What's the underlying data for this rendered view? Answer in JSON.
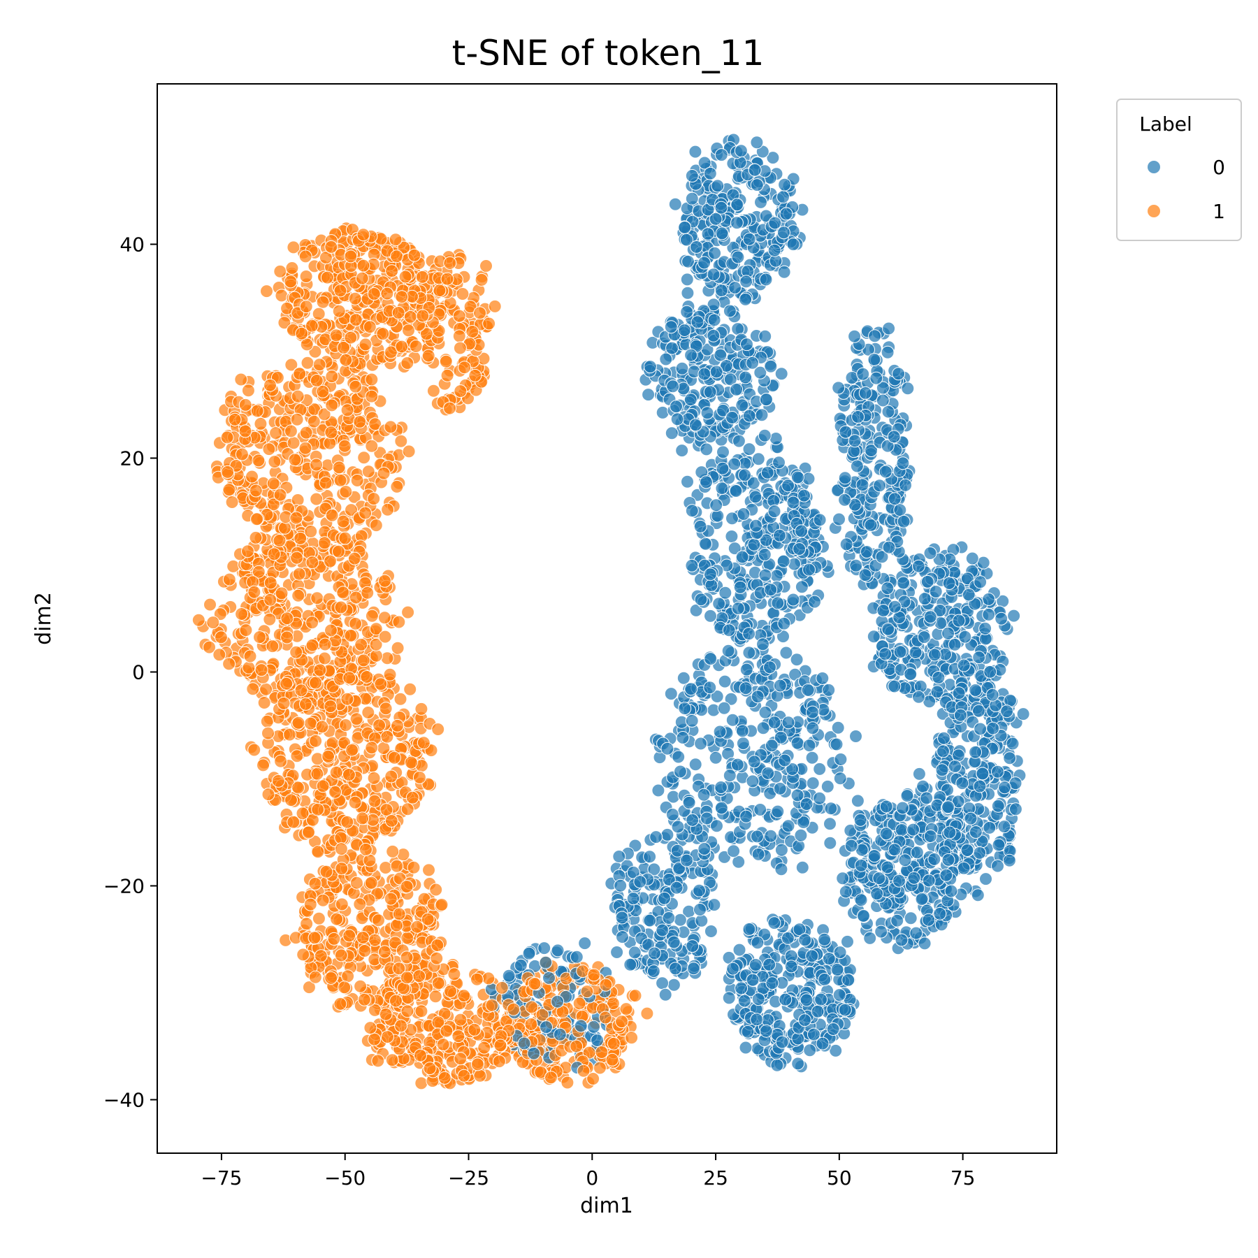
{
  "chart_data": {
    "type": "scatter",
    "title": "t-SNE of token_11",
    "xlabel": "dim1",
    "ylabel": "dim2",
    "xlim": [
      -88,
      94
    ],
    "ylim": [
      -45,
      55
    ],
    "xticks": [
      -75,
      -50,
      -25,
      0,
      25,
      50,
      75
    ],
    "yticks": [
      -40,
      -20,
      0,
      20,
      40
    ],
    "xtick_labels": [
      "−75",
      "−50",
      "−25",
      "0",
      "25",
      "50",
      "75"
    ],
    "ytick_labels": [
      "−40",
      "−20",
      "0",
      "20",
      "40"
    ],
    "grid": false,
    "legend": {
      "title": "Label",
      "placement": "outside-upper-right",
      "entries": [
        {
          "label": "0",
          "color": "#1f77b4"
        },
        {
          "label": "1",
          "color": "#ff7f0e"
        }
      ]
    },
    "series": [
      {
        "name": "0",
        "color": "#1f77b4",
        "clusters": [
          {
            "cx": 30,
            "cy": 42,
            "rx": 13,
            "ry": 8,
            "n": 260
          },
          {
            "cx": 24,
            "cy": 28,
            "rx": 13,
            "ry": 7,
            "n": 240
          },
          {
            "cx": 33,
            "cy": 12,
            "rx": 15,
            "ry": 10,
            "n": 340
          },
          {
            "cx": 57,
            "cy": 20,
            "rx": 8,
            "ry": 13,
            "n": 240
          },
          {
            "cx": 70,
            "cy": 4,
            "rx": 14,
            "ry": 8,
            "n": 280
          },
          {
            "cx": 78,
            "cy": -10,
            "rx": 9,
            "ry": 11,
            "n": 280
          },
          {
            "cx": 63,
            "cy": -18,
            "rx": 13,
            "ry": 8,
            "n": 300
          },
          {
            "cx": 32,
            "cy": -8,
            "rx": 20,
            "ry": 11,
            "n": 340
          },
          {
            "cx": 40,
            "cy": -30,
            "rx": 14,
            "ry": 7,
            "n": 300
          },
          {
            "cx": 15,
            "cy": -22,
            "rx": 11,
            "ry": 8,
            "n": 180
          },
          {
            "cx": -8,
            "cy": -31,
            "rx": 13,
            "ry": 6,
            "n": 110
          }
        ]
      },
      {
        "name": "1",
        "color": "#ff7f0e",
        "clusters": [
          {
            "cx": -47,
            "cy": 35,
            "rx": 17,
            "ry": 7,
            "n": 360
          },
          {
            "cx": -57,
            "cy": 20,
            "rx": 20,
            "ry": 9,
            "n": 360
          },
          {
            "cx": -58,
            "cy": 5,
            "rx": 20,
            "ry": 9,
            "n": 400
          },
          {
            "cx": -50,
            "cy": -8,
            "rx": 19,
            "ry": 9,
            "n": 380
          },
          {
            "cx": -45,
            "cy": -24,
            "rx": 16,
            "ry": 8,
            "n": 320
          },
          {
            "cx": -30,
            "cy": -33,
            "rx": 16,
            "ry": 6,
            "n": 280
          },
          {
            "cx": -5,
            "cy": -33,
            "rx": 14,
            "ry": 6,
            "n": 220
          },
          {
            "cx": -28,
            "cy": 32,
            "rx": 8,
            "ry": 8,
            "n": 120
          }
        ]
      }
    ]
  }
}
